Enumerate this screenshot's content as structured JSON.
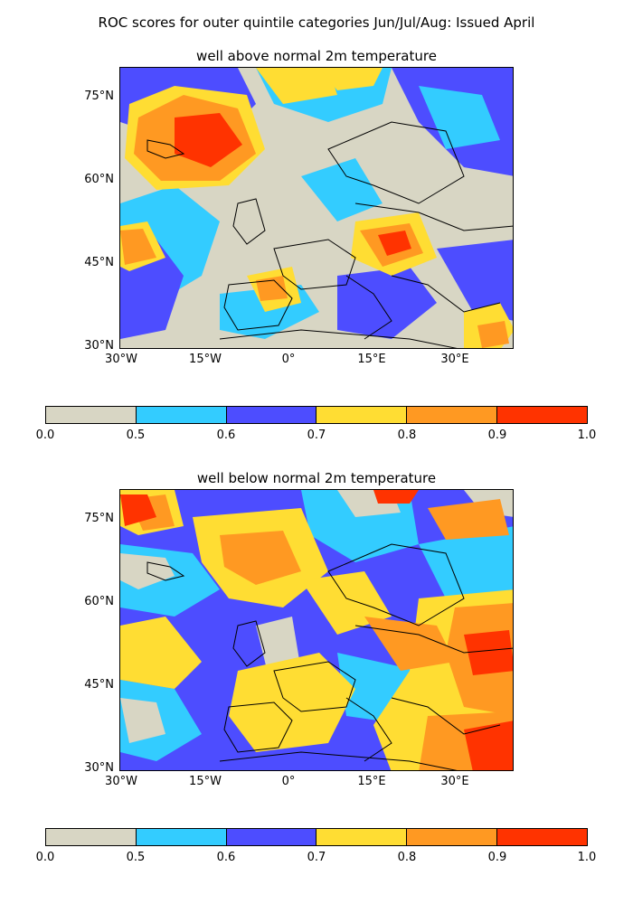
{
  "title": "ROC scores for outer quintile categories Jun/Jul/Aug: Issued April",
  "panels": [
    {
      "title": "well above normal 2m temperature",
      "lat_labels": [
        "75°N",
        "60°N",
        "45°N",
        "30°N"
      ],
      "lon_labels": [
        "30°W",
        "15°W",
        "0°",
        "15°E",
        "30°E"
      ]
    },
    {
      "title": "well below normal 2m temperature",
      "lat_labels": [
        "75°N",
        "60°N",
        "45°N",
        "30°N"
      ],
      "lon_labels": [
        "30°W",
        "15°W",
        "0°",
        "15°E",
        "30°E"
      ]
    }
  ],
  "colorbar": {
    "ticks": [
      "0.0",
      "0.5",
      "0.6",
      "0.7",
      "0.8",
      "0.9",
      "1.0"
    ],
    "colors": [
      "#d8d6c4",
      "#33ccff",
      "#4d4dff",
      "#ffdd33",
      "#ff9922",
      "#ff3300"
    ]
  }
}
